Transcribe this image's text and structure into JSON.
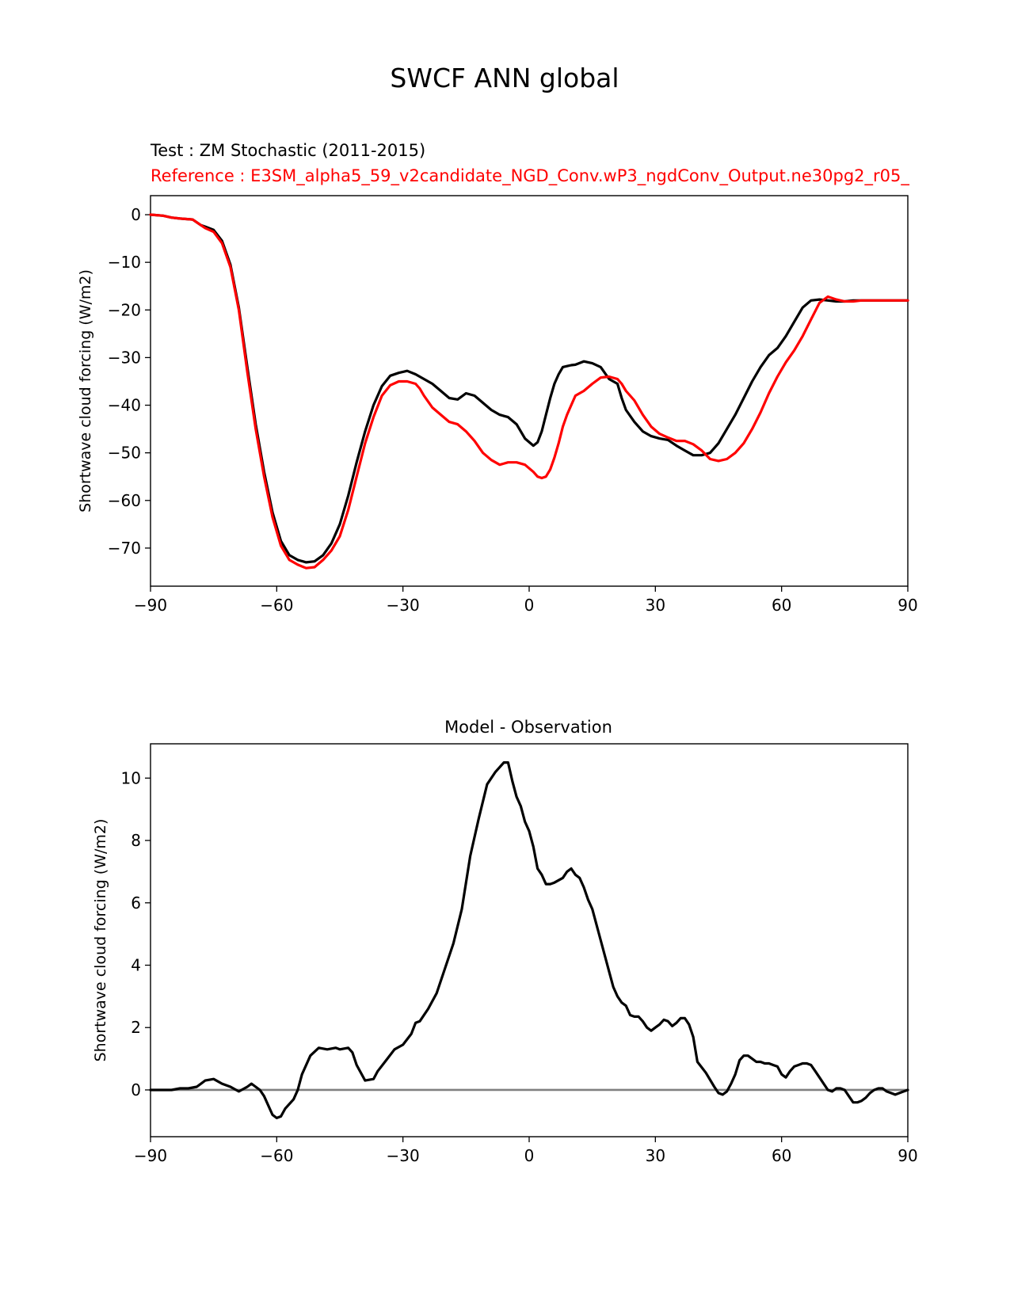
{
  "figure": {
    "suptitle": "SWCF ANN global",
    "test_label": "Test : ZM Stochastic (2011-2015)",
    "reference_label": "Reference : E3SM_alpha5_59_v2candidate_NGD_Conv.wP3_ngdConv_Output.ne30pg2_r05_"
  },
  "colors": {
    "test": "#000000",
    "reference": "#ff0000",
    "zero_line": "#808080"
  },
  "chart_data": [
    {
      "type": "line",
      "title": "",
      "xlabel": "",
      "ylabel": "Shortwave cloud forcing (W/m2)",
      "xlim": [
        -90,
        90
      ],
      "ylim": [
        -78,
        4
      ],
      "xticks": [
        -90,
        -60,
        -30,
        0,
        30,
        60,
        90
      ],
      "xtick_labels": [
        "−90",
        "−60",
        "−30",
        "0",
        "30",
        "60",
        "90"
      ],
      "yticks": [
        0,
        -10,
        -20,
        -30,
        -40,
        -50,
        -60,
        -70
      ],
      "ytick_labels": [
        "0",
        "−10",
        "−20",
        "−30",
        "−40",
        "−50",
        "−60",
        "−70"
      ],
      "grid": false,
      "series": [
        {
          "name": "Test",
          "color": "#000000",
          "x": [
            -90,
            -87,
            -85,
            -83,
            -80,
            -78,
            -77,
            -75,
            -73,
            -71,
            -69,
            -67,
            -65,
            -63,
            -61,
            -59,
            -57,
            -55,
            -53,
            -51,
            -49,
            -47,
            -45,
            -43,
            -41,
            -39,
            -37,
            -35,
            -33,
            -31,
            -29,
            -27,
            -26,
            -25,
            -23,
            -21,
            -19,
            -17,
            -15,
            -13,
            -11,
            -9,
            -7,
            -5,
            -3,
            -1,
            1,
            2,
            3,
            4,
            5,
            6,
            7,
            8,
            9,
            10,
            11,
            13,
            15,
            17,
            19,
            21,
            22,
            23,
            25,
            27,
            29,
            31,
            33,
            35,
            37,
            39,
            41,
            43,
            45,
            47,
            49,
            51,
            53,
            55,
            57,
            59,
            61,
            63,
            65,
            67,
            69,
            71,
            73,
            75,
            77,
            79,
            81,
            83,
            85,
            87,
            90
          ],
          "y": [
            0,
            -0.2,
            -0.6,
            -0.8,
            -1.0,
            -2.2,
            -2.5,
            -3.2,
            -5.5,
            -10.5,
            -19.5,
            -32.0,
            -44.0,
            -54.0,
            -62.5,
            -68.5,
            -71.5,
            -72.5,
            -73.0,
            -72.8,
            -71.5,
            -69.0,
            -65.0,
            -59.0,
            -52.0,
            -45.5,
            -40.0,
            -36.0,
            -33.8,
            -33.2,
            -32.8,
            -33.5,
            -34.0,
            -34.5,
            -35.5,
            -37.0,
            -38.5,
            -38.8,
            -37.5,
            -38.0,
            -39.5,
            -41.0,
            -42.0,
            -42.5,
            -44.0,
            -47.0,
            -48.5,
            -47.8,
            -45.5,
            -42.0,
            -38.5,
            -35.5,
            -33.5,
            -32.0,
            -31.8,
            -31.6,
            -31.5,
            -30.8,
            -31.2,
            -32.0,
            -34.5,
            -35.5,
            -38.5,
            -41.0,
            -43.5,
            -45.5,
            -46.5,
            -47.0,
            -47.3,
            -48.5,
            -49.5,
            -50.5,
            -50.5,
            -50.0,
            -48.0,
            -45.0,
            -42.0,
            -38.5,
            -35.0,
            -32.0,
            -29.5,
            -28.0,
            -25.5,
            -22.5,
            -19.5,
            -18.0,
            -17.8,
            -18.0,
            -18.2,
            -18.2,
            -18.0,
            -18.0,
            -18.0,
            -18.0,
            -18.0,
            -18.0,
            -18.0
          ]
        },
        {
          "name": "Reference",
          "color": "#ff0000",
          "x": [
            -90,
            -87,
            -85,
            -83,
            -80,
            -78,
            -77,
            -75,
            -73,
            -71,
            -69,
            -67,
            -65,
            -63,
            -61,
            -59,
            -57,
            -55,
            -53,
            -51,
            -49,
            -47,
            -45,
            -43,
            -41,
            -39,
            -37,
            -35,
            -33,
            -31,
            -29,
            -27,
            -26,
            -25,
            -23,
            -21,
            -19,
            -17,
            -15,
            -13,
            -11,
            -9,
            -7,
            -5,
            -3,
            -1,
            1,
            2,
            3,
            4,
            5,
            6,
            7,
            8,
            9,
            10,
            11,
            13,
            15,
            17,
            19,
            21,
            22,
            23,
            25,
            27,
            29,
            31,
            33,
            35,
            37,
            39,
            41,
            43,
            45,
            47,
            49,
            51,
            53,
            55,
            57,
            59,
            61,
            63,
            65,
            67,
            69,
            71,
            73,
            75,
            77,
            79,
            81,
            83,
            85,
            87,
            90
          ],
          "y": [
            0,
            -0.2,
            -0.6,
            -0.8,
            -1.0,
            -2.2,
            -2.8,
            -3.6,
            -6.0,
            -11.0,
            -20.0,
            -33.0,
            -45.0,
            -55.0,
            -63.5,
            -69.5,
            -72.5,
            -73.5,
            -74.2,
            -74.0,
            -72.5,
            -70.5,
            -67.5,
            -62.0,
            -55.0,
            -48.0,
            -42.5,
            -38.0,
            -35.8,
            -35.0,
            -35.0,
            -35.5,
            -36.5,
            -38.0,
            -40.5,
            -42.0,
            -43.5,
            -44.0,
            -45.5,
            -47.5,
            -50.0,
            -51.5,
            -52.5,
            -52.0,
            -52.0,
            -52.5,
            -54.0,
            -55.0,
            -55.3,
            -55.0,
            -53.5,
            -51.0,
            -48.0,
            -44.5,
            -42.0,
            -40.0,
            -38.0,
            -37.0,
            -35.5,
            -34.2,
            -34.0,
            -34.5,
            -35.5,
            -37.0,
            -39.0,
            -42.0,
            -44.5,
            -46.0,
            -46.8,
            -47.5,
            -47.5,
            -48.2,
            -49.5,
            -51.3,
            -51.7,
            -51.3,
            -50.0,
            -48.0,
            -45.0,
            -41.5,
            -37.5,
            -34.0,
            -31.0,
            -28.5,
            -25.5,
            -22.0,
            -18.5,
            -17.2,
            -17.8,
            -18.2,
            -18.2,
            -18.0,
            -18.0,
            -18.0,
            -18.0,
            -18.0,
            -18.0
          ]
        }
      ]
    },
    {
      "type": "line",
      "title": "Model - Observation",
      "xlabel": "",
      "ylabel": "Shortwave cloud forcing (W/m2)",
      "xlim": [
        -90,
        90
      ],
      "ylim": [
        -1.5,
        11.1
      ],
      "xticks": [
        -90,
        -60,
        -30,
        0,
        30,
        60,
        90
      ],
      "xtick_labels": [
        "−90",
        "−60",
        "−30",
        "0",
        "30",
        "60",
        "90"
      ],
      "yticks": [
        0,
        2,
        4,
        6,
        8,
        10
      ],
      "ytick_labels": [
        "0",
        "2",
        "4",
        "6",
        "8",
        "10"
      ],
      "grid": false,
      "zero_line": 0,
      "series": [
        {
          "name": "Model - Observation",
          "color": "#000000",
          "x": [
            -90,
            -87,
            -85,
            -83,
            -81,
            -79,
            -77,
            -75,
            -73,
            -71,
            -69,
            -67,
            -66,
            -64,
            -63,
            -61,
            -60,
            -59,
            -58,
            -56,
            -55,
            -54,
            -52,
            -50,
            -48,
            -46,
            -45,
            -43,
            -42,
            -41,
            -39,
            -37,
            -36,
            -34,
            -32,
            -30,
            -28,
            -27,
            -26,
            -24,
            -22,
            -20,
            -18,
            -16,
            -14,
            -12,
            -10,
            -8,
            -6,
            -5,
            -4,
            -3,
            -2,
            -1,
            0,
            1,
            2,
            3,
            4,
            5,
            6,
            8,
            9,
            10,
            11,
            12,
            13,
            14,
            15,
            17,
            19,
            20,
            21,
            22,
            23,
            24,
            25,
            26,
            27,
            28,
            29,
            30,
            31,
            32,
            33,
            34,
            35,
            36,
            37,
            38,
            39,
            40,
            42,
            44,
            45,
            46,
            47,
            48,
            49,
            50,
            51,
            52,
            53,
            54,
            55,
            56,
            57,
            58,
            59,
            60,
            61,
            62,
            63,
            64,
            65,
            66,
            67,
            68,
            69,
            70,
            71,
            72,
            73,
            74,
            75,
            76,
            77,
            78,
            79,
            80,
            81,
            82,
            83,
            84,
            85,
            86,
            87,
            88,
            89,
            90
          ],
          "y": [
            0,
            0,
            0,
            0.05,
            0.05,
            0.1,
            0.3,
            0.35,
            0.2,
            0.1,
            -0.05,
            0.1,
            0.2,
            0.0,
            -0.2,
            -0.8,
            -0.9,
            -0.85,
            -0.6,
            -0.3,
            0.0,
            0.5,
            1.1,
            1.35,
            1.3,
            1.35,
            1.3,
            1.35,
            1.2,
            0.8,
            0.3,
            0.35,
            0.6,
            0.95,
            1.3,
            1.45,
            1.8,
            2.15,
            2.2,
            2.6,
            3.1,
            3.9,
            4.7,
            5.8,
            7.5,
            8.7,
            9.8,
            10.2,
            10.5,
            10.5,
            9.9,
            9.4,
            9.1,
            8.6,
            8.3,
            7.8,
            7.1,
            6.9,
            6.6,
            6.6,
            6.65,
            6.8,
            7.0,
            7.1,
            6.9,
            6.8,
            6.5,
            6.1,
            5.8,
            4.8,
            3.8,
            3.3,
            3.0,
            2.8,
            2.7,
            2.4,
            2.35,
            2.35,
            2.2,
            2.0,
            1.9,
            2.0,
            2.1,
            2.25,
            2.2,
            2.05,
            2.15,
            2.3,
            2.3,
            2.1,
            1.7,
            0.9,
            0.55,
            0.1,
            -0.1,
            -0.15,
            -0.05,
            0.2,
            0.5,
            0.95,
            1.1,
            1.1,
            1.0,
            0.9,
            0.9,
            0.85,
            0.85,
            0.8,
            0.75,
            0.5,
            0.4,
            0.6,
            0.75,
            0.8,
            0.85,
            0.85,
            0.8,
            0.6,
            0.4,
            0.2,
            0.0,
            -0.05,
            0.05,
            0.05,
            0.0,
            -0.2,
            -0.4,
            -0.4,
            -0.35,
            -0.25,
            -0.1,
            0.0,
            0.05,
            0.05,
            -0.05,
            -0.1,
            -0.15,
            -0.1,
            -0.05,
            0.0
          ]
        }
      ]
    }
  ]
}
